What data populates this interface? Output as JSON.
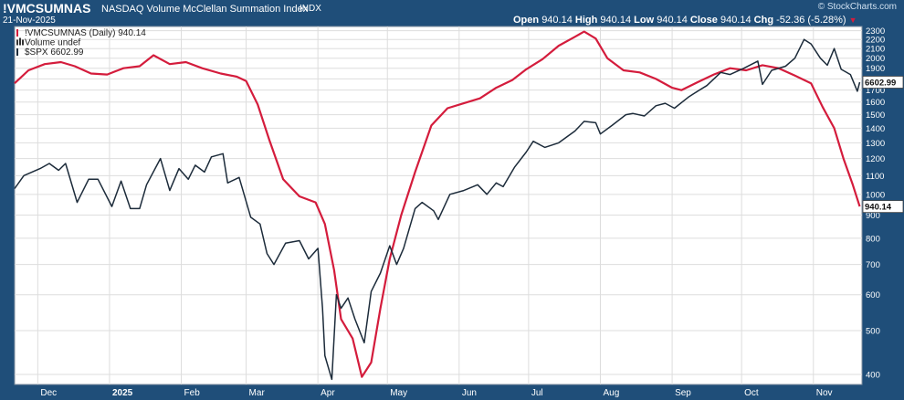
{
  "header": {
    "symbol": "!VMCSUMNAS",
    "description": "NASDAQ Volume McClellan Summation Index",
    "exchange": "INDX",
    "date": "21-Nov-2025",
    "brand": "© StockCharts.com",
    "open_label": "Open",
    "open_value": "940.14",
    "high_label": "High",
    "high_value": "940.14",
    "low_label": "Low",
    "low_value": "940.14",
    "close_label": "Close",
    "close_value": "940.14",
    "chg_label": "Chg",
    "chg_value": "-52.36 (-5.28%)",
    "chg_arrow": "▼"
  },
  "legend": [
    {
      "label": "!VMCSUMNAS (Daily) 940.14",
      "color": "#d41c3c",
      "marker": "line"
    },
    {
      "label": "Volume undef",
      "color": "#333333",
      "marker": "bars"
    },
    {
      "label": "$SPX 6602.99",
      "color": "#1c2b3a",
      "marker": "line"
    }
  ],
  "colors": {
    "summation": "#d41c3c",
    "spx": "#1c2b3a",
    "frame": "#1f4e79",
    "grid": "#dddddd"
  },
  "chart_data": {
    "type": "line",
    "y_scale": "log",
    "ylim": [
      380,
      2350
    ],
    "y_ticks": [
      400,
      500,
      600,
      700,
      800,
      900,
      1000,
      1100,
      1200,
      1300,
      1400,
      1500,
      1600,
      1700,
      1800,
      1900,
      2000,
      2100,
      2200,
      2300
    ],
    "grid": true,
    "legend_position": "top-left",
    "x_labels": [
      {
        "label": "Dec",
        "date": "2024-12-01"
      },
      {
        "label": "2025",
        "date": "2025-01-01",
        "bold": true
      },
      {
        "label": "Feb",
        "date": "2025-02-01"
      },
      {
        "label": "Mar",
        "date": "2025-03-01"
      },
      {
        "label": "Apr",
        "date": "2025-04-01"
      },
      {
        "label": "May",
        "date": "2025-05-01"
      },
      {
        "label": "Jun",
        "date": "2025-06-01"
      },
      {
        "label": "Jul",
        "date": "2025-07-01"
      },
      {
        "label": "Aug",
        "date": "2025-08-01"
      },
      {
        "label": "Sep",
        "date": "2025-09-01"
      },
      {
        "label": "Oct",
        "date": "2025-10-01"
      },
      {
        "label": "Nov",
        "date": "2025-11-01"
      }
    ],
    "date_range": [
      "2024-11-21",
      "2025-11-22"
    ],
    "last_value_labels": [
      {
        "series": "$SPX",
        "text": "6602.99",
        "y": 1770
      },
      {
        "series": "!VMCSUMNAS",
        "text": "940.14",
        "y": 940
      }
    ],
    "series": [
      {
        "name": "!VMCSUMNAS",
        "color": "#d41c3c",
        "points": [
          [
            "2024-11-21",
            1760
          ],
          [
            "2024-11-27",
            1880
          ],
          [
            "2024-12-04",
            1940
          ],
          [
            "2024-12-11",
            1960
          ],
          [
            "2024-12-17",
            1920
          ],
          [
            "2024-12-24",
            1850
          ],
          [
            "2024-12-31",
            1840
          ],
          [
            "2025-01-07",
            1900
          ],
          [
            "2025-01-14",
            1920
          ],
          [
            "2025-01-20",
            2030
          ],
          [
            "2025-01-27",
            1940
          ],
          [
            "2025-02-03",
            1960
          ],
          [
            "2025-02-10",
            1900
          ],
          [
            "2025-02-18",
            1850
          ],
          [
            "2025-02-25",
            1820
          ],
          [
            "2025-03-01",
            1780
          ],
          [
            "2025-03-06",
            1580
          ],
          [
            "2025-03-11",
            1320
          ],
          [
            "2025-03-17",
            1080
          ],
          [
            "2025-03-24",
            990
          ],
          [
            "2025-03-31",
            960
          ],
          [
            "2025-04-04",
            860
          ],
          [
            "2025-04-08",
            680
          ],
          [
            "2025-04-11",
            530
          ],
          [
            "2025-04-16",
            480
          ],
          [
            "2025-04-20",
            395
          ],
          [
            "2025-04-24",
            425
          ],
          [
            "2025-04-28",
            560
          ],
          [
            "2025-05-02",
            720
          ],
          [
            "2025-05-07",
            900
          ],
          [
            "2025-05-13",
            1120
          ],
          [
            "2025-05-20",
            1420
          ],
          [
            "2025-05-27",
            1550
          ],
          [
            "2025-06-03",
            1590
          ],
          [
            "2025-06-10",
            1630
          ],
          [
            "2025-06-17",
            1720
          ],
          [
            "2025-06-24",
            1790
          ],
          [
            "2025-06-30",
            1890
          ],
          [
            "2025-07-07",
            1990
          ],
          [
            "2025-07-14",
            2130
          ],
          [
            "2025-07-21",
            2230
          ],
          [
            "2025-07-25",
            2290
          ],
          [
            "2025-07-30",
            2210
          ],
          [
            "2025-08-04",
            2000
          ],
          [
            "2025-08-11",
            1880
          ],
          [
            "2025-08-18",
            1860
          ],
          [
            "2025-08-25",
            1800
          ],
          [
            "2025-09-01",
            1720
          ],
          [
            "2025-09-05",
            1700
          ],
          [
            "2025-09-12",
            1770
          ],
          [
            "2025-09-19",
            1840
          ],
          [
            "2025-09-26",
            1900
          ],
          [
            "2025-10-03",
            1880
          ],
          [
            "2025-10-10",
            1930
          ],
          [
            "2025-10-17",
            1900
          ],
          [
            "2025-10-24",
            1830
          ],
          [
            "2025-10-31",
            1760
          ],
          [
            "2025-11-05",
            1560
          ],
          [
            "2025-11-10",
            1400
          ],
          [
            "2025-11-14",
            1200
          ],
          [
            "2025-11-18",
            1050
          ],
          [
            "2025-11-21",
            940
          ]
        ]
      },
      {
        "name": "$SPX",
        "color": "#1c2b3a",
        "points": [
          [
            "2024-11-21",
            1030
          ],
          [
            "2024-11-25",
            1100
          ],
          [
            "2024-12-02",
            1140
          ],
          [
            "2024-12-06",
            1170
          ],
          [
            "2024-12-10",
            1130
          ],
          [
            "2024-12-13",
            1170
          ],
          [
            "2024-12-18",
            960
          ],
          [
            "2024-12-23",
            1080
          ],
          [
            "2024-12-27",
            1080
          ],
          [
            "2025-01-02",
            940
          ],
          [
            "2025-01-06",
            1070
          ],
          [
            "2025-01-10",
            930
          ],
          [
            "2025-01-14",
            930
          ],
          [
            "2025-01-17",
            1050
          ],
          [
            "2025-01-23",
            1200
          ],
          [
            "2025-01-27",
            1020
          ],
          [
            "2025-01-31",
            1140
          ],
          [
            "2025-02-04",
            1080
          ],
          [
            "2025-02-07",
            1160
          ],
          [
            "2025-02-11",
            1120
          ],
          [
            "2025-02-14",
            1210
          ],
          [
            "2025-02-19",
            1230
          ],
          [
            "2025-02-21",
            1060
          ],
          [
            "2025-02-26",
            1090
          ],
          [
            "2025-03-03",
            890
          ],
          [
            "2025-03-07",
            860
          ],
          [
            "2025-03-10",
            740
          ],
          [
            "2025-03-13",
            700
          ],
          [
            "2025-03-18",
            780
          ],
          [
            "2025-03-24",
            790
          ],
          [
            "2025-03-28",
            720
          ],
          [
            "2025-04-01",
            760
          ],
          [
            "2025-04-03",
            560
          ],
          [
            "2025-04-04",
            440
          ],
          [
            "2025-04-07",
            390
          ],
          [
            "2025-04-09",
            600
          ],
          [
            "2025-04-11",
            560
          ],
          [
            "2025-04-14",
            590
          ],
          [
            "2025-04-17",
            530
          ],
          [
            "2025-04-21",
            470
          ],
          [
            "2025-04-24",
            610
          ],
          [
            "2025-04-28",
            670
          ],
          [
            "2025-05-02",
            770
          ],
          [
            "2025-05-05",
            700
          ],
          [
            "2025-05-08",
            760
          ],
          [
            "2025-05-13",
            930
          ],
          [
            "2025-05-16",
            960
          ],
          [
            "2025-05-21",
            920
          ],
          [
            "2025-05-23",
            880
          ],
          [
            "2025-05-28",
            1000
          ],
          [
            "2025-06-03",
            1020
          ],
          [
            "2025-06-09",
            1050
          ],
          [
            "2025-06-13",
            1000
          ],
          [
            "2025-06-17",
            1060
          ],
          [
            "2025-06-20",
            1040
          ],
          [
            "2025-06-25",
            1150
          ],
          [
            "2025-06-30",
            1240
          ],
          [
            "2025-07-03",
            1310
          ],
          [
            "2025-07-08",
            1270
          ],
          [
            "2025-07-14",
            1300
          ],
          [
            "2025-07-21",
            1380
          ],
          [
            "2025-07-25",
            1450
          ],
          [
            "2025-07-30",
            1440
          ],
          [
            "2025-08-01",
            1360
          ],
          [
            "2025-08-06",
            1420
          ],
          [
            "2025-08-12",
            1500
          ],
          [
            "2025-08-15",
            1510
          ],
          [
            "2025-08-20",
            1490
          ],
          [
            "2025-08-25",
            1570
          ],
          [
            "2025-08-29",
            1590
          ],
          [
            "2025-09-02",
            1550
          ],
          [
            "2025-09-08",
            1640
          ],
          [
            "2025-09-12",
            1690
          ],
          [
            "2025-09-16",
            1740
          ],
          [
            "2025-09-22",
            1860
          ],
          [
            "2025-09-26",
            1840
          ],
          [
            "2025-10-02",
            1900
          ],
          [
            "2025-10-08",
            1970
          ],
          [
            "2025-10-10",
            1750
          ],
          [
            "2025-10-14",
            1880
          ],
          [
            "2025-10-20",
            1920
          ],
          [
            "2025-10-24",
            2000
          ],
          [
            "2025-10-28",
            2200
          ],
          [
            "2025-10-31",
            2150
          ],
          [
            "2025-11-04",
            2000
          ],
          [
            "2025-11-07",
            1930
          ],
          [
            "2025-11-10",
            2100
          ],
          [
            "2025-11-13",
            1890
          ],
          [
            "2025-11-17",
            1840
          ],
          [
            "2025-11-20",
            1690
          ],
          [
            "2025-11-21",
            1770
          ]
        ]
      }
    ]
  }
}
